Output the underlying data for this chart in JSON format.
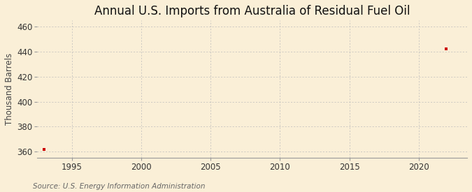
{
  "title": "Annual U.S. Imports from Australia of Residual Fuel Oil",
  "ylabel": "Thousand Barrels",
  "source": "Source: U.S. Energy Information Administration",
  "data_x": [
    1993,
    2022
  ],
  "data_y": [
    362,
    442
  ],
  "marker_color": "#cc0000",
  "marker_size": 3.5,
  "xlim": [
    1992.5,
    2023.5
  ],
  "ylim": [
    355,
    465
  ],
  "yticks": [
    360,
    380,
    400,
    420,
    440,
    460
  ],
  "xticks": [
    1995,
    2000,
    2005,
    2010,
    2015,
    2020
  ],
  "background_color": "#faefd7",
  "plot_bg_color": "#faefd7",
  "grid_color": "#bbbbbb",
  "title_fontsize": 12,
  "label_fontsize": 8.5,
  "tick_fontsize": 8.5,
  "source_fontsize": 7.5
}
